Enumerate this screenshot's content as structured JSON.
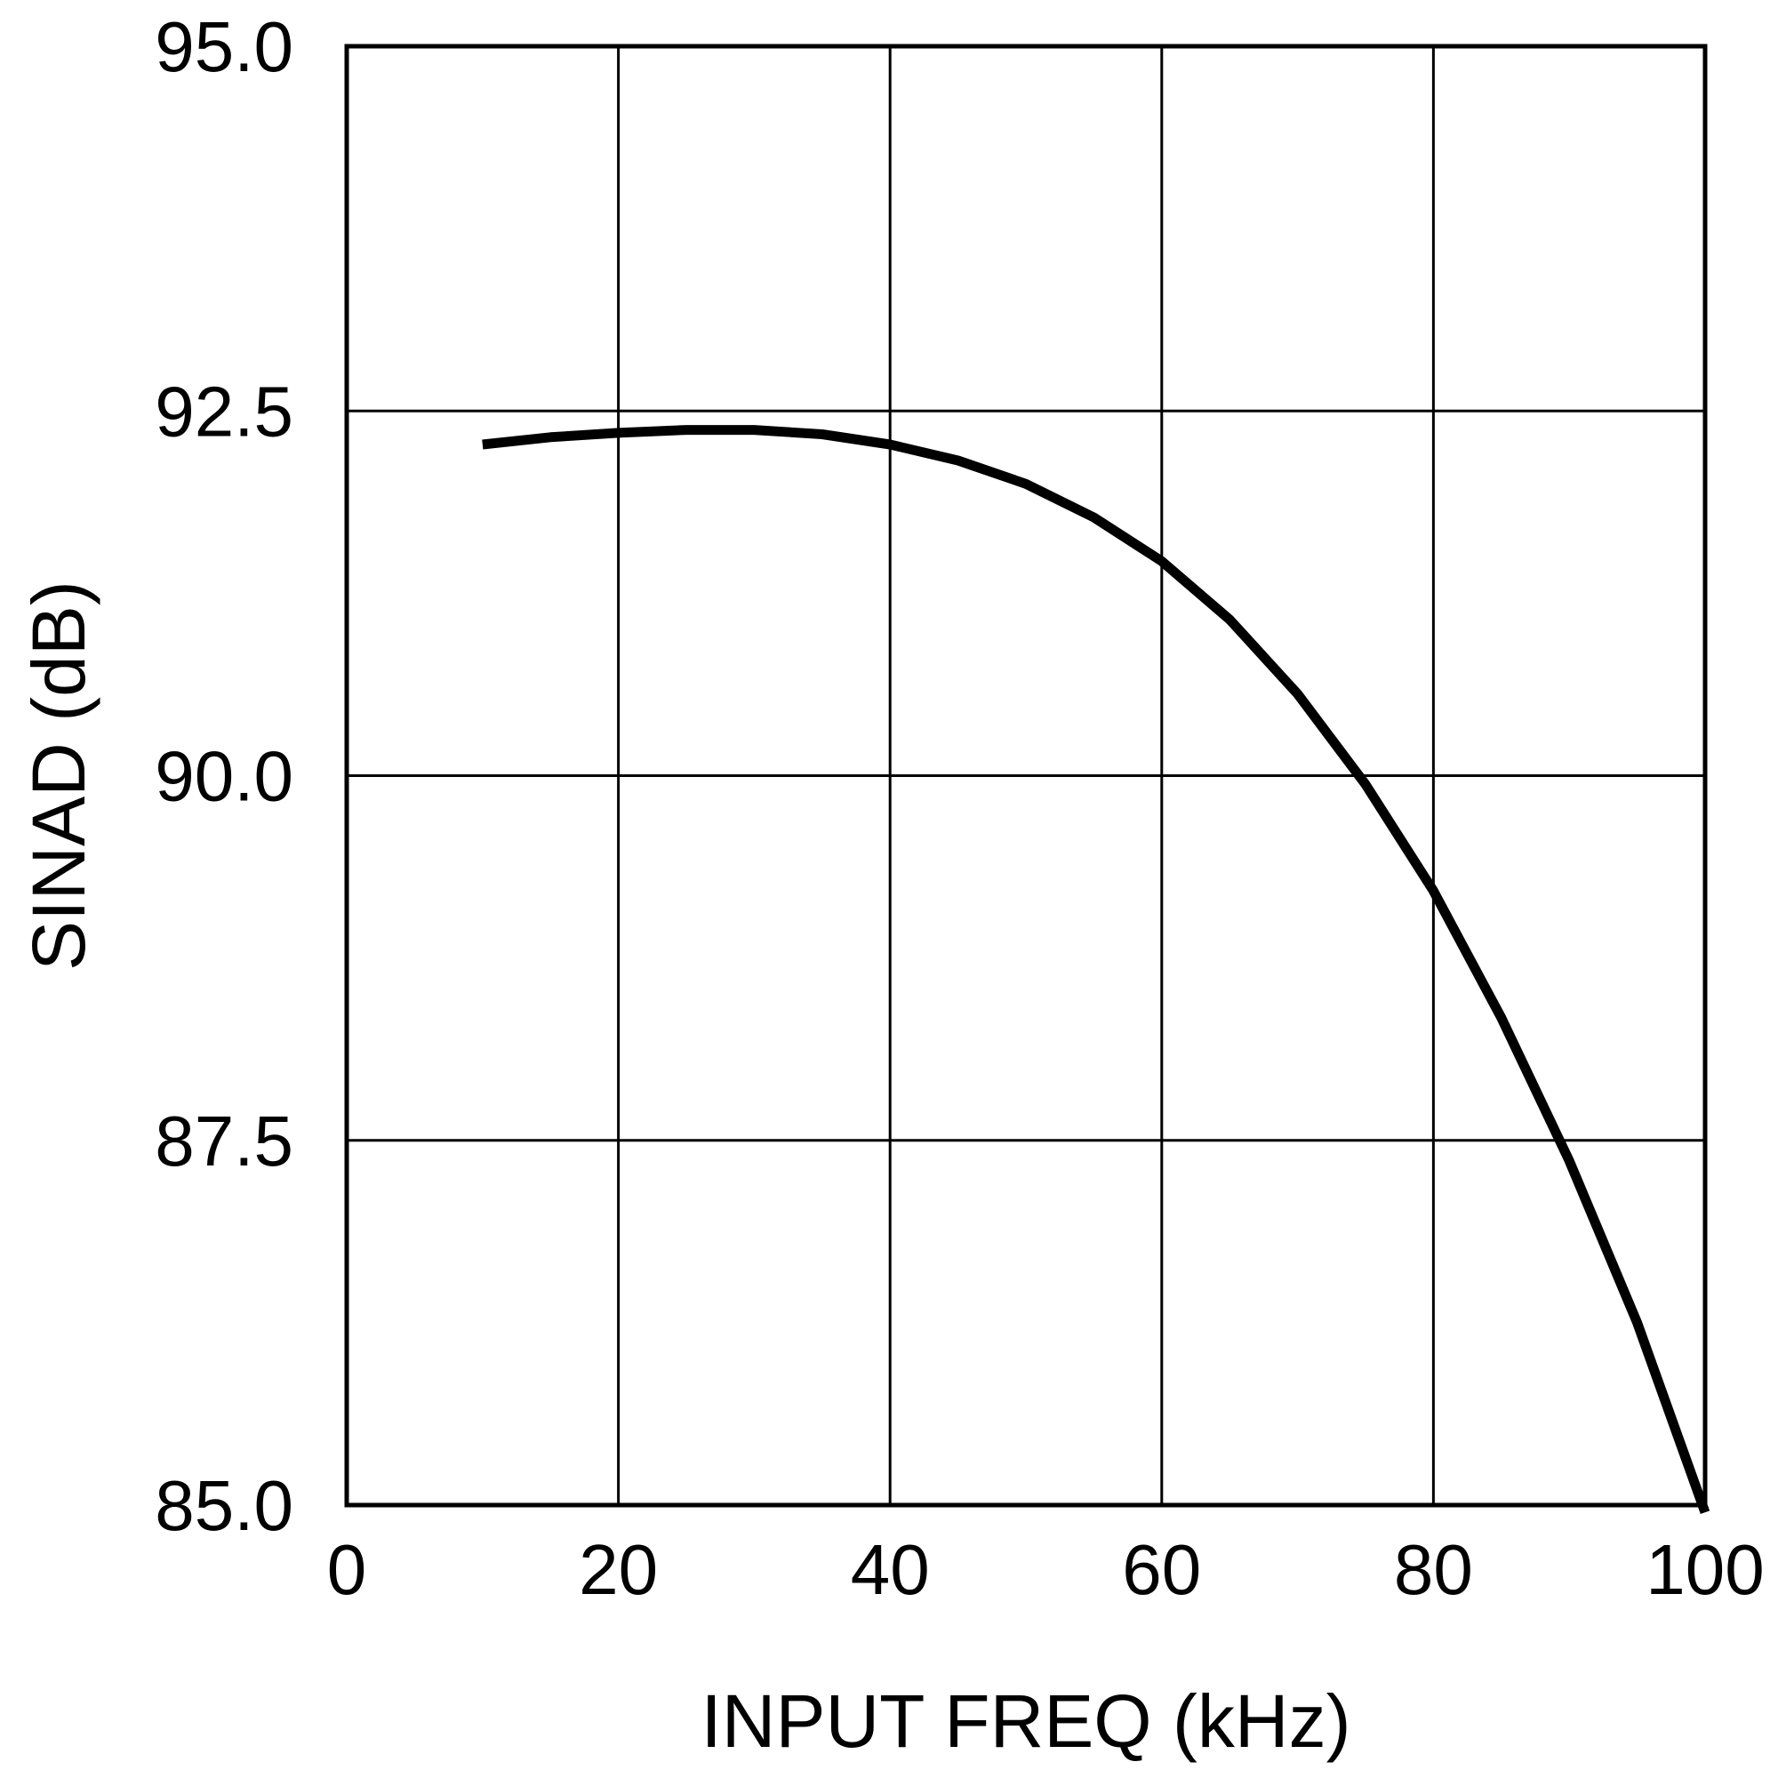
{
  "chart_data": {
    "type": "line",
    "title": "",
    "xlabel": "INPUT FREQ (kHz)",
    "ylabel": "SINAD (dB)",
    "xlim": [
      0,
      100
    ],
    "ylim": [
      85.0,
      95.0
    ],
    "xticks": [
      "0",
      "20",
      "40",
      "60",
      "80",
      "100"
    ],
    "yticks": [
      "85.0",
      "87.5",
      "90.0",
      "92.5",
      "95.0"
    ],
    "grid": true,
    "line_color": "#000000",
    "series": [
      {
        "x": [
          10,
          15,
          20,
          25,
          30,
          35,
          40,
          45,
          50,
          55,
          60,
          65,
          70,
          75,
          80,
          85,
          90,
          95,
          100
        ],
        "values": [
          92.27,
          92.32,
          92.35,
          92.37,
          92.37,
          92.34,
          92.27,
          92.16,
          92.0,
          91.77,
          91.47,
          91.07,
          90.56,
          89.94,
          89.21,
          88.34,
          87.36,
          86.25,
          84.95
        ]
      }
    ]
  }
}
